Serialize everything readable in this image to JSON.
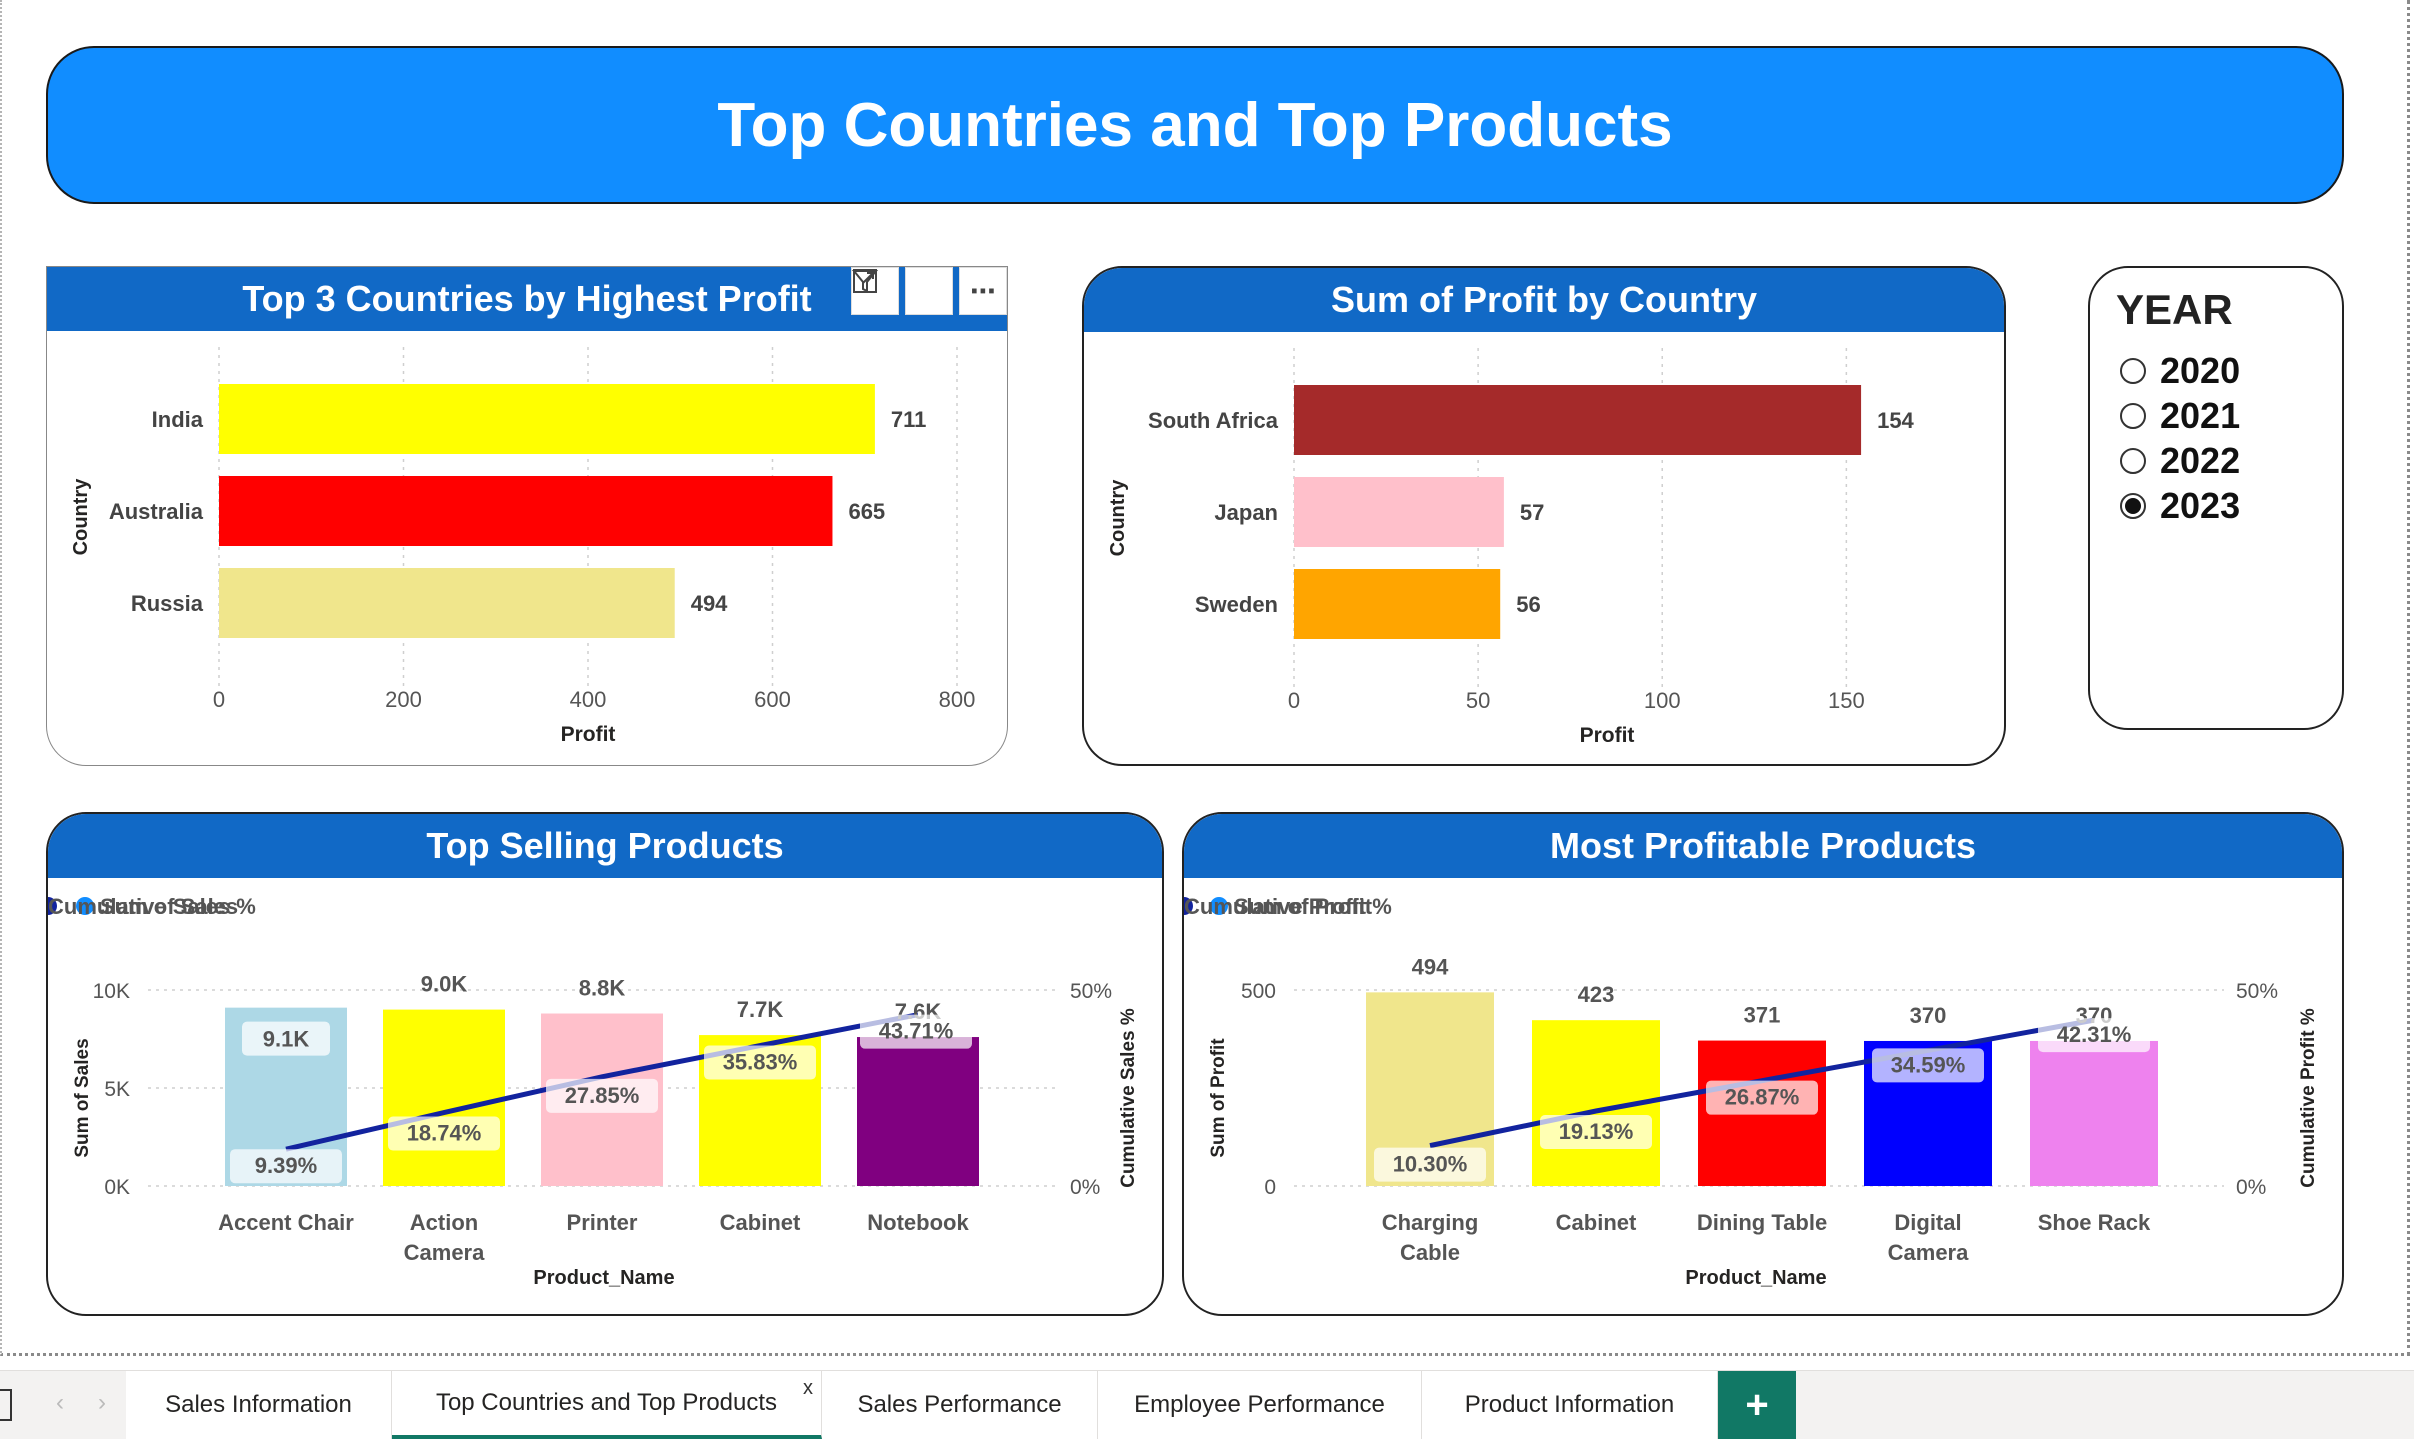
{
  "page_title": "Top Countries and Top Products",
  "toolbar": {
    "filter_icon": "filter-icon",
    "focus_icon": "focus-mode-icon",
    "more_icon": "more-options-icon"
  },
  "year_slicer": {
    "title": "YEAR",
    "options": [
      {
        "label": "2020",
        "selected": false
      },
      {
        "label": "2021",
        "selected": false
      },
      {
        "label": "2022",
        "selected": false
      },
      {
        "label": "2023",
        "selected": true
      }
    ]
  },
  "tabs": {
    "items": [
      "Sales Information",
      "Top Countries and Top Products",
      "Sales Performance",
      "Employee Performance",
      "Product Information"
    ],
    "active": "Top Countries and Top Products",
    "close_label": "x",
    "add_label": "+"
  },
  "chart_data": [
    {
      "type": "bar",
      "orientation": "horizontal",
      "title": "Top 3 Countries by Highest Profit",
      "xlabel": "Profit",
      "ylabel": "Country",
      "categories": [
        "India",
        "Australia",
        "Russia"
      ],
      "values": [
        711,
        665,
        494
      ],
      "data_labels": [
        "711",
        "665",
        "494"
      ],
      "colors": [
        "#ffff00",
        "#ff0000",
        "#f0e68c"
      ],
      "xlim": [
        0,
        800
      ],
      "xticks": [
        "0",
        "200",
        "400",
        "600",
        "800"
      ],
      "grid": true
    },
    {
      "type": "bar",
      "orientation": "horizontal",
      "title": "Sum of Profit by Country",
      "xlabel": "Profit",
      "ylabel": "Country",
      "categories": [
        "South Africa",
        "Japan",
        "Sweden"
      ],
      "values": [
        154,
        57,
        56
      ],
      "data_labels": [
        "154",
        "57",
        "56"
      ],
      "colors": [
        "#a52a2a",
        "#ffc0cb",
        "#ffa500"
      ],
      "xlim": [
        0,
        170
      ],
      "xticks": [
        "0",
        "50",
        "100",
        "150"
      ],
      "xtick_values": [
        0,
        50,
        100,
        150
      ],
      "grid": true
    },
    {
      "type": "bar",
      "title": "Top Selling Products",
      "xlabel": "Product_Name",
      "ylabel": "Sum of Sales",
      "y2label": "Cumulative Sales %",
      "categories": [
        "Accent Chair",
        "Action Camera",
        "Printer",
        "Cabinet",
        "Notebook"
      ],
      "category_lines": [
        [
          "Accent Chair"
        ],
        [
          "Action",
          "Camera"
        ],
        [
          "Printer"
        ],
        [
          "Cabinet"
        ],
        [
          "Notebook"
        ]
      ],
      "series": [
        {
          "name": "Sum of Sales",
          "values": [
            9100,
            9000,
            8800,
            7700,
            7600
          ],
          "labels": [
            "9.1K",
            "9.0K",
            "8.8K",
            "7.7K",
            "7.6K"
          ],
          "color": "#118dff"
        },
        {
          "name": "Cumulative Sales %",
          "values": [
            9.39,
            18.74,
            27.85,
            35.83,
            43.71
          ],
          "labels": [
            "9.39%",
            "18.74%",
            "27.85%",
            "35.83%",
            "43.71%"
          ],
          "color": "#12239e",
          "axis": "right"
        }
      ],
      "bar_colors": [
        "#add8e6",
        "#ffff00",
        "#ffc0cb",
        "#ffff00",
        "#800080"
      ],
      "ylim": [
        0,
        10000
      ],
      "yticks": [
        "0K",
        "5K",
        "10K"
      ],
      "y2lim": [
        0,
        50
      ],
      "y2ticks": [
        "0%",
        "50%"
      ],
      "legend": "top-left"
    },
    {
      "type": "bar",
      "title": "Most Profitable Products",
      "xlabel": "Product_Name",
      "ylabel": "Sum of Profit",
      "y2label": "Cumulative Profit %",
      "categories": [
        "Charging Cable",
        "Cabinet",
        "Dining Table",
        "Digital Camera",
        "Shoe Rack"
      ],
      "category_lines": [
        [
          "Charging",
          "Cable"
        ],
        [
          "Cabinet"
        ],
        [
          "Dining Table"
        ],
        [
          "Digital",
          "Camera"
        ],
        [
          "Shoe Rack"
        ]
      ],
      "series": [
        {
          "name": "Sum of Profit",
          "values": [
            494,
            423,
            371,
            370,
            370
          ],
          "labels": [
            "494",
            "423",
            "371",
            "370",
            "370"
          ],
          "color": "#118dff"
        },
        {
          "name": "Cumulative Profit %",
          "values": [
            10.3,
            19.13,
            26.87,
            34.59,
            42.31
          ],
          "labels": [
            "10.30%",
            "19.13%",
            "26.87%",
            "34.59%",
            "42.31%"
          ],
          "color": "#12239e",
          "axis": "right"
        }
      ],
      "bar_colors": [
        "#f0e68c",
        "#ffff00",
        "#ff0000",
        "#0000ff",
        "#ee82ee"
      ],
      "ylim": [
        0,
        500
      ],
      "yticks": [
        "0",
        "500"
      ],
      "y2lim": [
        0,
        50
      ],
      "y2ticks": [
        "0%",
        "50%"
      ],
      "legend": "top-left"
    }
  ]
}
